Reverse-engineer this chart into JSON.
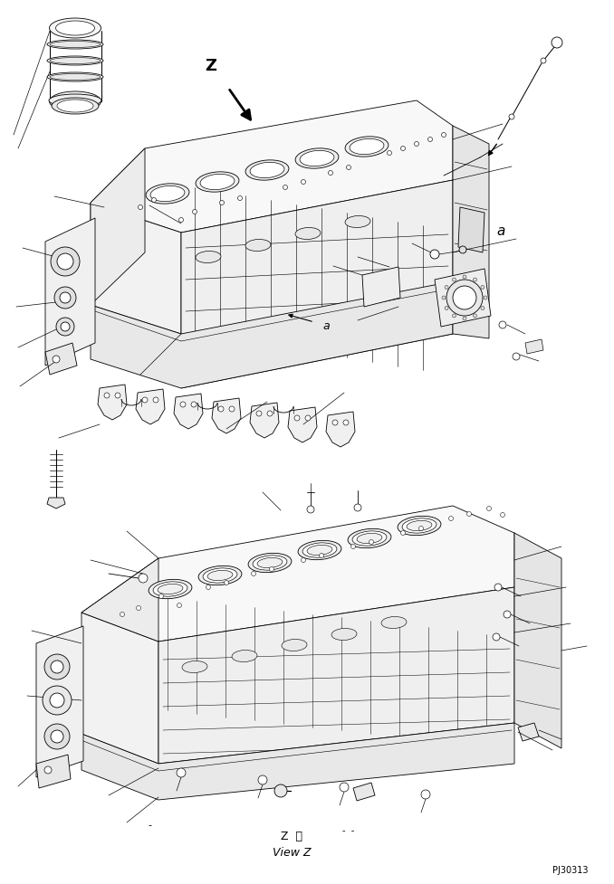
{
  "background_color": "#ffffff",
  "line_color": "#000000",
  "line_width": 0.6,
  "bottom_text_1": "Z  視",
  "bottom_text_2": "View Z",
  "bottom_right_text": "PJ30313",
  "label_Z": "Z",
  "label_a_right": "a",
  "label_a_block": "a"
}
